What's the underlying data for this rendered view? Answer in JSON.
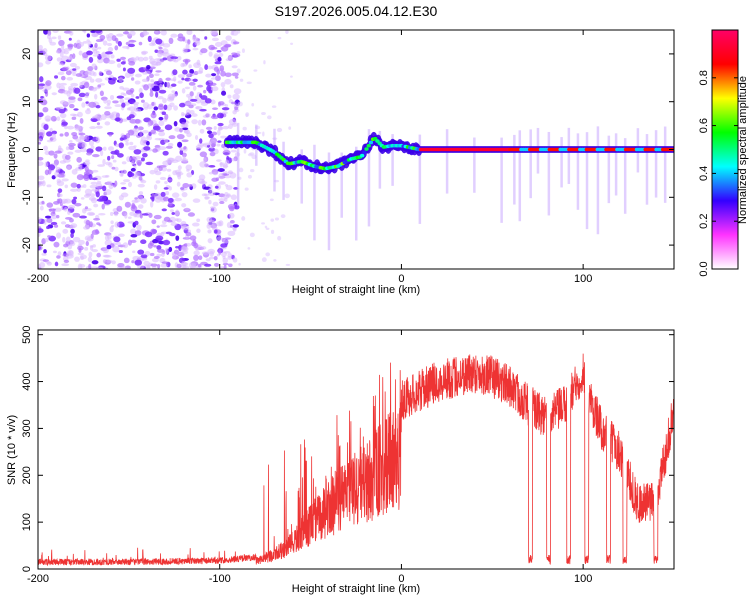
{
  "title": "S197.2026.005.04.12.E30",
  "chart_data": [
    {
      "type": "heatmap",
      "title": "S197.2026.005.04.12.E30",
      "xlabel": "Height of straight line (km)",
      "ylabel": "Frequency (Hz)",
      "xlim": [
        -200,
        150
      ],
      "ylim": [
        -25,
        25
      ],
      "x_ticks": [
        -200,
        -100,
        0,
        100
      ],
      "y_ticks": [
        -20,
        -10,
        0,
        10,
        20
      ],
      "colorbar": {
        "label": "Normalized spectral amplitude",
        "range": [
          0,
          1
        ],
        "ticks": [
          0.0,
          0.2,
          0.4,
          0.6,
          0.8
        ],
        "colors": [
          "#ffffff",
          "#ff33ff",
          "#3300ff",
          "#00ffff",
          "#00ff00",
          "#ffff00",
          "#ff0000",
          "#ff0066"
        ]
      },
      "ridge": {
        "description_points_x": [
          -95,
          -80,
          -70,
          -62,
          -55,
          -48,
          -42,
          -35,
          -28,
          -22,
          -15,
          -10,
          -5,
          0,
          10,
          30,
          60,
          80,
          100,
          120,
          150
        ],
        "description_points_y": [
          1.5,
          1.5,
          -0.5,
          -3,
          -2.5,
          -3.5,
          -4,
          -3.5,
          -2,
          -1.5,
          2.5,
          0.5,
          0.8,
          0.8,
          0,
          0,
          0,
          0,
          0,
          0,
          0
        ]
      }
    },
    {
      "type": "line",
      "xlabel": "Height of straight line (km)",
      "ylabel": "SNR (10 * v/v)",
      "xlim": [
        -200,
        150
      ],
      "ylim": [
        0,
        510
      ],
      "x_ticks": [
        -200,
        -100,
        0,
        100
      ],
      "y_ticks": [
        0,
        100,
        200,
        300,
        400,
        500
      ],
      "series": [
        {
          "name": "SNR",
          "color": "#ee3333",
          "envelope_x": [
            -200,
            -150,
            -100,
            -80,
            -70,
            -60,
            -50,
            -40,
            -30,
            -20,
            -10,
            0,
            10,
            20,
            30,
            40,
            50,
            60,
            65,
            70,
            80,
            90,
            100,
            105,
            110,
            120,
            130,
            140,
            150
          ],
          "envelope_y": [
            15,
            15,
            18,
            25,
            45,
            80,
            140,
            190,
            240,
            270,
            320,
            360,
            380,
            400,
            410,
            420,
            410,
            390,
            370,
            350,
            320,
            350,
            420,
            350,
            300,
            250,
            140,
            140,
            340
          ],
          "dropouts_x": [
            71,
            81,
            92,
            102,
            114,
            123,
            140
          ]
        }
      ]
    }
  ]
}
